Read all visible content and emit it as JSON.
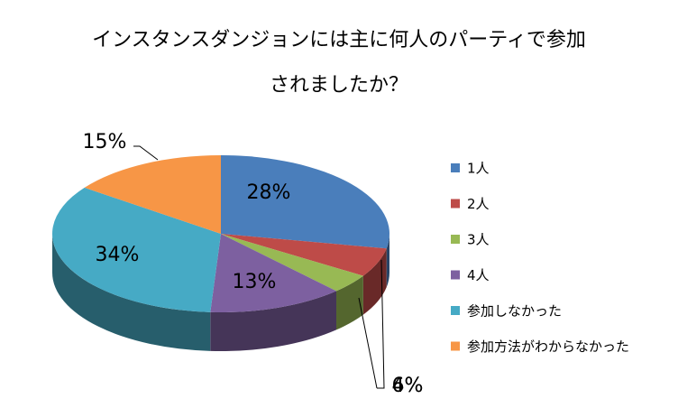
{
  "chart_data": {
    "type": "pie3d",
    "title": [
      "インスタンスダンジョンには主に何人のパーティで参加",
      "されましたか？"
    ],
    "categories": [
      "1人",
      "2人",
      "3人",
      "4人",
      "参加しなかった",
      "参加方法がわからなかった"
    ],
    "values": [
      28,
      6,
      4,
      13,
      34,
      15
    ],
    "value_labels": [
      "28%",
      "6%",
      "4%",
      "13%",
      "34%",
      "15%"
    ],
    "colors": [
      "#4a7ebb",
      "#be4b48",
      "#98b954",
      "#7d60a0",
      "#46aac5",
      "#f79646"
    ],
    "legend": "right"
  }
}
